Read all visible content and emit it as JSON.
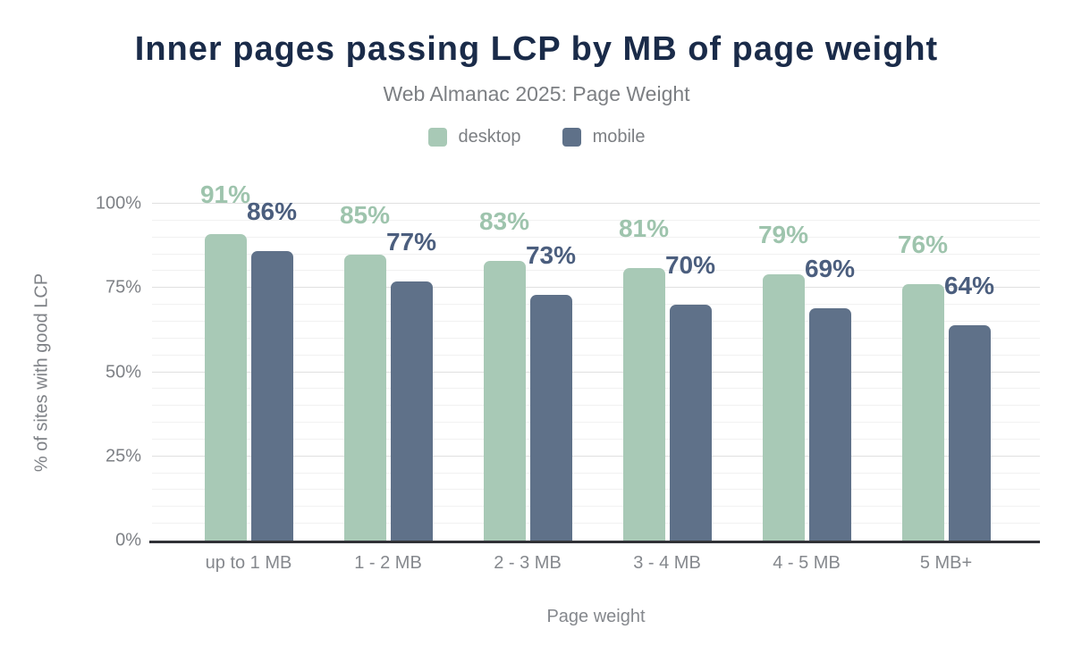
{
  "theme": {
    "background": "#ffffff",
    "title_color": "#1a2b49",
    "subtitle_color": "#7c7f83",
    "tick_color": "#7e8186",
    "axis_line_color": "#313237",
    "grid_minor_color": "#f1f1f1",
    "grid_major_color": "#e0e0e0"
  },
  "chart_data": {
    "type": "bar",
    "title": "Inner pages passing LCP by MB of page weight",
    "subtitle": "Web Almanac 2025: Page Weight",
    "xlabel": "Page weight",
    "ylabel": "% of sites with good LCP",
    "categories": [
      "up to 1 MB",
      "1 - 2 MB",
      "2 - 3 MB",
      "3 - 4 MB",
      "4 - 5 MB",
      "5 MB+"
    ],
    "series": [
      {
        "name": "desktop",
        "color": "#a8c9b6",
        "label_color": "#9ec4ad",
        "values": [
          91,
          85,
          83,
          81,
          79,
          76
        ],
        "labels": [
          "91%",
          "85%",
          "83%",
          "81%",
          "79%",
          "76%"
        ]
      },
      {
        "name": "mobile",
        "color": "#5f7189",
        "label_color": "#4b5e7e",
        "values": [
          86,
          77,
          73,
          70,
          69,
          64
        ],
        "labels": [
          "86%",
          "77%",
          "73%",
          "70%",
          "69%",
          "64%"
        ]
      }
    ],
    "ylim": [
      0,
      100
    ],
    "yticks": [
      {
        "value": 0,
        "label": "0%"
      },
      {
        "value": 25,
        "label": "25%"
      },
      {
        "value": 50,
        "label": "50%"
      },
      {
        "value": 75,
        "label": "75%"
      },
      {
        "value": 100,
        "label": "100%"
      }
    ],
    "minor_grid_step": 5,
    "major_grid_step": 25,
    "grid": true,
    "legend_position": "top"
  }
}
